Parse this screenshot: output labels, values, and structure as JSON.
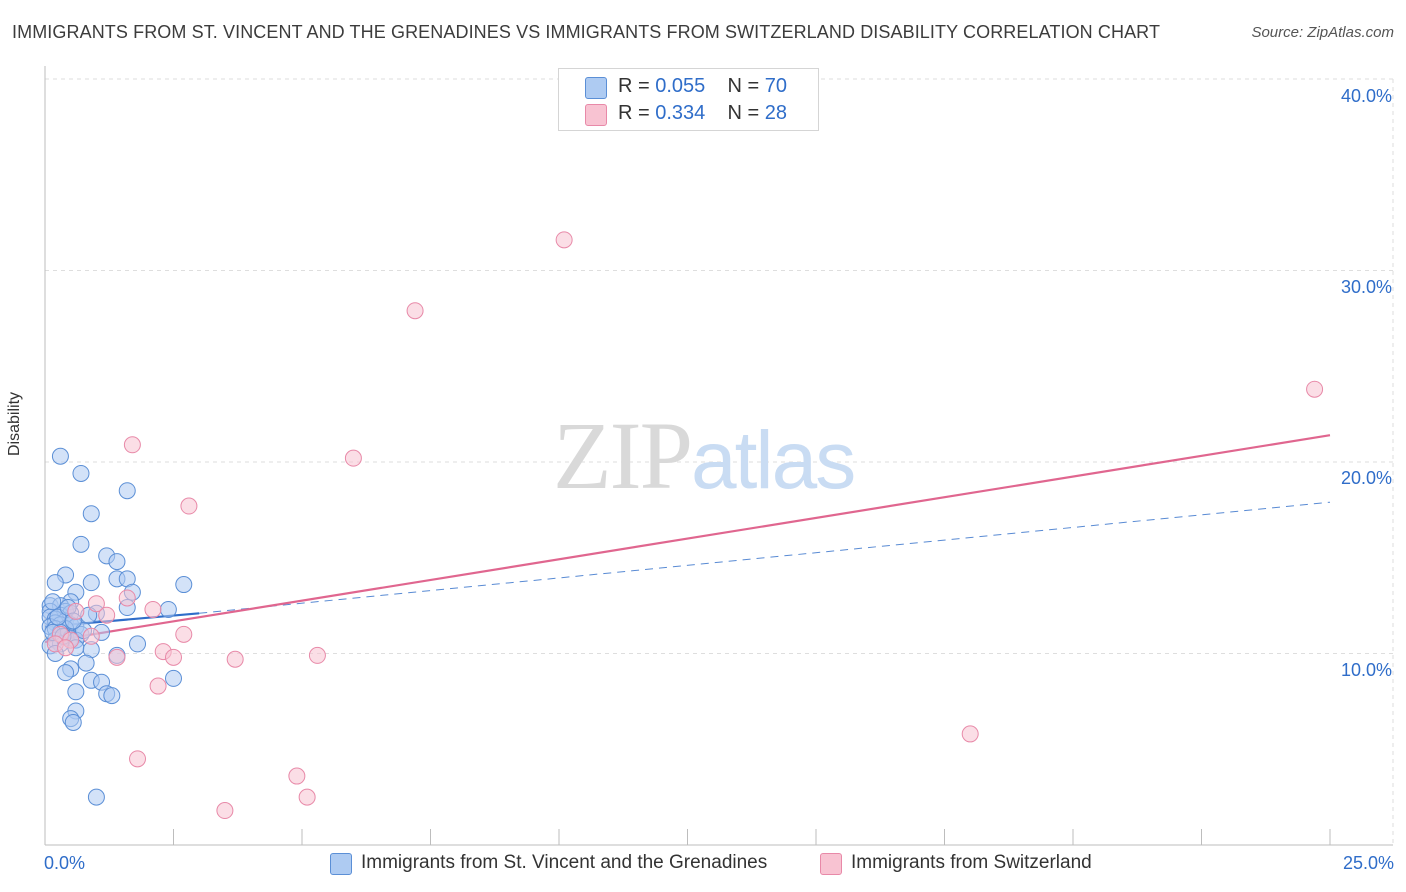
{
  "header": {
    "title": "IMMIGRANTS FROM ST. VINCENT AND THE GRENADINES VS IMMIGRANTS FROM SWITZERLAND DISABILITY CORRELATION CHART",
    "source": "Source: ZipAtlas.com"
  },
  "watermark": {
    "zip": "ZIP",
    "atlas": "atlas"
  },
  "legend": {
    "series1": {
      "r_label": "R = ",
      "r_value": "0.055",
      "n_label": "N = ",
      "n_value": "70"
    },
    "series2": {
      "r_label": "R = ",
      "r_value": "0.334",
      "n_label": "N = ",
      "n_value": "28"
    }
  },
  "colors": {
    "blue_fill": "#aecbf2",
    "blue_stroke": "#5b8fd6",
    "blue_line": "#2f6dc9",
    "pink_fill": "#f8c3d2",
    "pink_stroke": "#e889a8",
    "pink_line": "#e0668f",
    "grid": "#dedede",
    "axis_text": "#2f6dc9"
  },
  "chart_data": {
    "type": "scatter",
    "title": "IMMIGRANTS FROM ST. VINCENT AND THE GRENADINES VS IMMIGRANTS FROM SWITZERLAND DISABILITY CORRELATION CHART",
    "xlabel": "",
    "ylabel": "Disability",
    "xlim": [
      0,
      25
    ],
    "ylim": [
      0,
      40
    ],
    "x_tick_labels": [
      "0.0%",
      "25.0%"
    ],
    "y_ticks": [
      10,
      20,
      30,
      40
    ],
    "y_tick_labels": [
      "10.0%",
      "20.0%",
      "30.0%",
      "40.0%"
    ],
    "grid": true,
    "legend_position": "top-center",
    "series": [
      {
        "name": "Immigrants from St. Vincent and the Grenadines",
        "r": 0.055,
        "n": 70,
        "trend_solid": [
          [
            0.0,
            11.4
          ],
          [
            3.0,
            12.1
          ]
        ],
        "trend_dashed": [
          [
            3.0,
            12.1
          ],
          [
            25.0,
            17.9
          ]
        ],
        "points": [
          [
            0.3,
            20.3
          ],
          [
            0.7,
            19.4
          ],
          [
            1.6,
            18.5
          ],
          [
            0.9,
            17.3
          ],
          [
            0.7,
            15.7
          ],
          [
            1.2,
            15.1
          ],
          [
            1.4,
            14.8
          ],
          [
            0.4,
            14.1
          ],
          [
            1.4,
            13.9
          ],
          [
            1.6,
            13.9
          ],
          [
            0.2,
            13.7
          ],
          [
            0.9,
            13.7
          ],
          [
            2.7,
            13.6
          ],
          [
            0.6,
            13.2
          ],
          [
            1.7,
            13.2
          ],
          [
            0.5,
            12.7
          ],
          [
            0.1,
            12.5
          ],
          [
            0.3,
            12.5
          ],
          [
            1.6,
            12.4
          ],
          [
            2.4,
            12.3
          ],
          [
            0.1,
            12.2
          ],
          [
            0.4,
            12.2
          ],
          [
            0.3,
            12.0
          ],
          [
            0.5,
            12.1
          ],
          [
            1.0,
            12.1
          ],
          [
            0.1,
            11.9
          ],
          [
            0.2,
            11.8
          ],
          [
            0.4,
            11.7
          ],
          [
            0.2,
            11.6
          ],
          [
            0.3,
            11.5
          ],
          [
            0.5,
            11.5
          ],
          [
            0.1,
            11.4
          ],
          [
            0.6,
            11.4
          ],
          [
            0.2,
            11.3
          ],
          [
            0.4,
            11.3
          ],
          [
            0.3,
            11.1
          ],
          [
            0.7,
            11.0
          ],
          [
            1.1,
            11.1
          ],
          [
            0.4,
            10.9
          ],
          [
            0.5,
            10.8
          ],
          [
            0.2,
            10.7
          ],
          [
            0.6,
            10.7
          ],
          [
            0.3,
            10.5
          ],
          [
            1.8,
            10.5
          ],
          [
            0.1,
            10.4
          ],
          [
            0.6,
            10.3
          ],
          [
            0.9,
            10.2
          ],
          [
            0.2,
            10.0
          ],
          [
            1.4,
            9.9
          ],
          [
            0.8,
            9.5
          ],
          [
            0.5,
            9.2
          ],
          [
            0.4,
            9.0
          ],
          [
            0.9,
            8.6
          ],
          [
            1.1,
            8.5
          ],
          [
            2.5,
            8.7
          ],
          [
            0.6,
            8.0
          ],
          [
            1.2,
            7.9
          ],
          [
            1.3,
            7.8
          ],
          [
            0.6,
            7.0
          ],
          [
            0.5,
            6.6
          ],
          [
            0.55,
            6.4
          ],
          [
            1.0,
            2.5
          ],
          [
            0.25,
            11.9
          ],
          [
            0.45,
            12.4
          ],
          [
            0.15,
            11.1
          ],
          [
            0.35,
            10.9
          ],
          [
            0.75,
            11.2
          ],
          [
            0.15,
            12.7
          ],
          [
            0.55,
            11.7
          ],
          [
            0.85,
            12.0
          ]
        ]
      },
      {
        "name": "Immigrants from Switzerland",
        "r": 0.334,
        "n": 28,
        "trend_solid": [
          [
            0.0,
            10.6
          ],
          [
            25.0,
            21.4
          ]
        ],
        "points": [
          [
            10.1,
            31.6
          ],
          [
            7.2,
            27.9
          ],
          [
            24.7,
            23.8
          ],
          [
            1.7,
            20.9
          ],
          [
            6.0,
            20.2
          ],
          [
            2.8,
            17.7
          ],
          [
            1.6,
            12.9
          ],
          [
            2.1,
            12.3
          ],
          [
            1.0,
            12.6
          ],
          [
            1.2,
            12.0
          ],
          [
            0.6,
            12.2
          ],
          [
            0.3,
            11.0
          ],
          [
            0.9,
            10.9
          ],
          [
            2.7,
            11.0
          ],
          [
            0.2,
            10.5
          ],
          [
            0.5,
            10.7
          ],
          [
            1.4,
            9.8
          ],
          [
            2.3,
            10.1
          ],
          [
            2.5,
            9.8
          ],
          [
            3.7,
            9.7
          ],
          [
            5.3,
            9.9
          ],
          [
            2.2,
            8.3
          ],
          [
            18.0,
            5.8
          ],
          [
            1.8,
            4.5
          ],
          [
            4.9,
            3.6
          ],
          [
            5.1,
            2.5
          ],
          [
            3.5,
            1.8
          ],
          [
            0.4,
            10.3
          ]
        ]
      }
    ]
  },
  "bottom_legend": {
    "series1_label": "Immigrants from St. Vincent and the Grenadines",
    "series2_label": "Immigrants from Switzerland"
  }
}
